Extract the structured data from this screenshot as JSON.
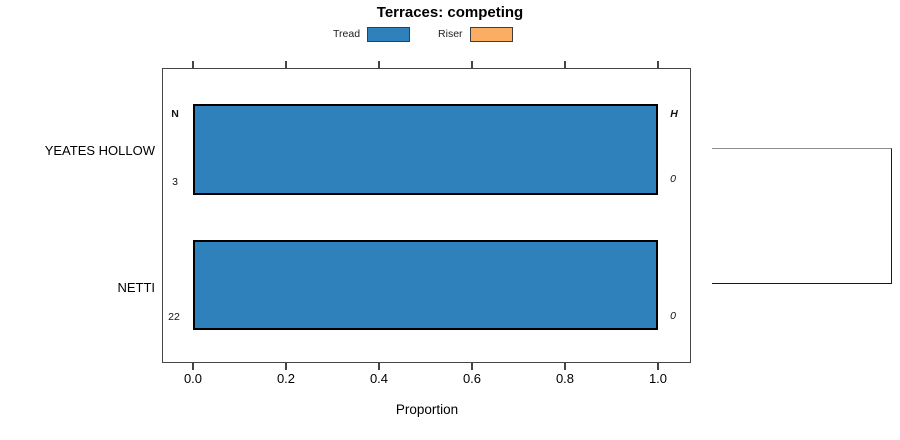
{
  "title": "Terraces: competing",
  "legend": {
    "items": [
      {
        "label": "Tread",
        "color": "#2e81ba"
      },
      {
        "label": "Riser",
        "color": "#fbad63"
      }
    ]
  },
  "headers": {
    "left": "N",
    "right": "H"
  },
  "rows": [
    {
      "category": "YEATES HOLLOW",
      "left_value": "3",
      "right_value": "0"
    },
    {
      "category": "NETTI",
      "left_value": "22",
      "right_value": "0"
    }
  ],
  "axis": {
    "xlabel": "Proportion",
    "x_ticks": [
      "0.0",
      "0.2",
      "0.4",
      "0.6",
      "0.8",
      "1.0"
    ]
  },
  "chart_data": {
    "type": "bar",
    "orientation": "horizontal",
    "title": "Terraces: competing",
    "categories": [
      "YEATES HOLLOW",
      "NETTI"
    ],
    "series": [
      {
        "name": "Tread",
        "values": [
          1.0,
          1.0
        ],
        "color": "#2e81ba"
      },
      {
        "name": "Riser",
        "values": [
          0.0,
          0.0
        ],
        "color": "#fbad63"
      }
    ],
    "annotations": {
      "left_header": "N",
      "left_values": [
        3,
        22
      ],
      "right_header": "H",
      "right_values": [
        0,
        0
      ]
    },
    "xlabel": "Proportion",
    "xlim": [
      0.0,
      1.0
    ],
    "x_tick_values": [
      0.0,
      0.2,
      0.4,
      0.6,
      0.8,
      1.0
    ],
    "legend_position": "top",
    "grid": false
  }
}
